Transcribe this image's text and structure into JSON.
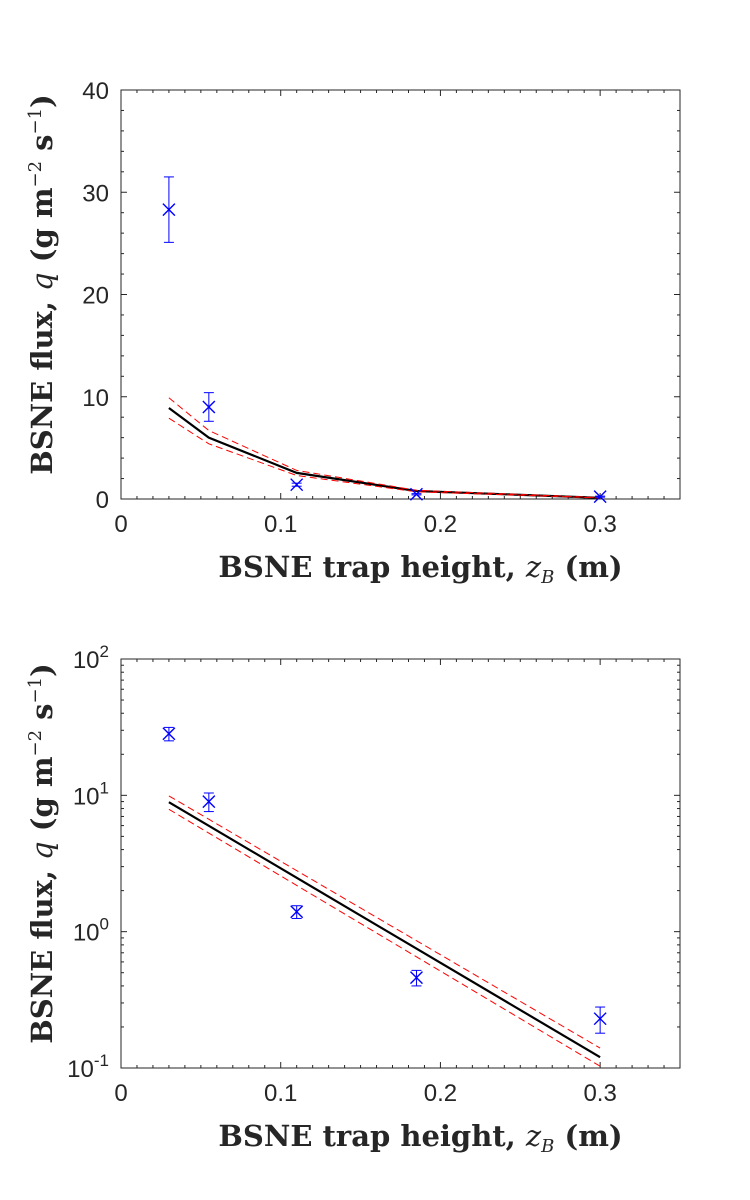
{
  "chart_data": [
    {
      "type": "scatter",
      "xlabel": "BSNE trap height, z_B (m)",
      "xlabel_parts": {
        "pre": "BSNE trap height, ",
        "var": "z",
        "sub": "B",
        "post": " (m)"
      },
      "ylabel": "BSNE flux, q (g m^-2 s^-1)",
      "ylabel_parts": {
        "pre": "BSNE flux, ",
        "var": "q",
        "mid": " (g m",
        "sup1": "−2",
        "mid2": " s",
        "sup2": "−1",
        "post": ")"
      },
      "xlim": [
        0,
        0.35
      ],
      "ylim": [
        0,
        40
      ],
      "yscale": "linear",
      "x_ticks": [
        "0",
        "0.1",
        "0.2",
        "0.3"
      ],
      "x_tick_values": [
        0,
        0.1,
        0.2,
        0.3
      ],
      "y_ticks": [
        "0",
        "10",
        "20",
        "30",
        "40"
      ],
      "y_tick_values": [
        0,
        10,
        20,
        30,
        40
      ],
      "grid": false,
      "series": [
        {
          "kind": "points_with_errorbars",
          "marker": "x",
          "color": "#0000ff",
          "x": [
            0.03,
            0.055,
            0.11,
            0.185,
            0.3
          ],
          "y": [
            28.3,
            9.0,
            1.4,
            0.46,
            0.23
          ],
          "err": [
            3.2,
            1.4,
            0.15,
            0.06,
            0.05
          ]
        },
        {
          "kind": "fit_line",
          "color": "#000000",
          "x": [
            0.03,
            0.055,
            0.11,
            0.185,
            0.3
          ],
          "y": [
            8.9,
            6.0,
            2.55,
            0.78,
            0.12
          ]
        },
        {
          "kind": "confidence_bound",
          "color": "#ff0000",
          "x": [
            0.03,
            0.055,
            0.11,
            0.185,
            0.3
          ],
          "y": [
            9.9,
            6.7,
            2.8,
            0.85,
            0.14
          ]
        },
        {
          "kind": "confidence_bound",
          "color": "#ff0000",
          "x": [
            0.03,
            0.055,
            0.11,
            0.185,
            0.3
          ],
          "y": [
            7.9,
            5.4,
            2.3,
            0.7,
            0.103
          ]
        }
      ]
    },
    {
      "type": "scatter",
      "xlabel": "BSNE trap height, z_B (m)",
      "xlabel_parts": {
        "pre": "BSNE trap height, ",
        "var": "z",
        "sub": "B",
        "post": " (m)"
      },
      "ylabel": "BSNE flux, q (g m^-2 s^-1)",
      "ylabel_parts": {
        "pre": "BSNE flux, ",
        "var": "q",
        "mid": " (g m",
        "sup1": "−2",
        "mid2": " s",
        "sup2": "−1",
        "post": ")"
      },
      "xlim": [
        0,
        0.35
      ],
      "ylim": [
        0.1,
        100
      ],
      "yscale": "log",
      "x_ticks": [
        "0",
        "0.1",
        "0.2",
        "0.3"
      ],
      "x_tick_values": [
        0,
        0.1,
        0.2,
        0.3
      ],
      "y_ticks": [
        {
          "base": "10",
          "exp": "-1"
        },
        {
          "base": "10",
          "exp": "0"
        },
        {
          "base": "10",
          "exp": "1"
        },
        {
          "base": "10",
          "exp": "2"
        }
      ],
      "y_tick_values": [
        0.1,
        1,
        10,
        100
      ],
      "grid": false,
      "series": [
        {
          "kind": "points_with_errorbars",
          "marker": "x",
          "color": "#0000ff",
          "x": [
            0.03,
            0.055,
            0.11,
            0.185,
            0.3
          ],
          "y": [
            28.3,
            9.0,
            1.4,
            0.46,
            0.23
          ],
          "err": [
            3.2,
            1.4,
            0.15,
            0.06,
            0.05
          ]
        },
        {
          "kind": "fit_line",
          "color": "#000000",
          "x": [
            0.03,
            0.3
          ],
          "y": [
            8.9,
            0.12
          ]
        },
        {
          "kind": "confidence_bound",
          "color": "#ff0000",
          "x": [
            0.03,
            0.3
          ],
          "y": [
            9.9,
            0.14
          ]
        },
        {
          "kind": "confidence_bound",
          "color": "#ff0000",
          "x": [
            0.03,
            0.3
          ],
          "y": [
            7.9,
            0.103
          ]
        }
      ]
    }
  ]
}
